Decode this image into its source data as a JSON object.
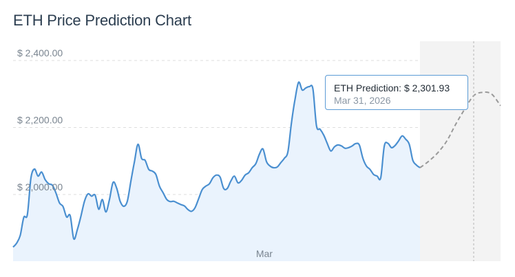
{
  "title": "ETH Price Prediction Chart",
  "colors": {
    "line": "#4a8fd0",
    "area": "#eaf3fd",
    "forecast_line": "#999999",
    "forecast_band": "#f3f3f3",
    "grid": "#dddddd",
    "tooltip_border": "#5b9bd5"
  },
  "tooltip": {
    "label": "ETH Prediction:",
    "value": "$ 2,301.93",
    "date": "Mar 31, 2026"
  },
  "chart_data": {
    "type": "area",
    "title": "ETH Price Prediction Chart",
    "xlabel": "",
    "ylabel": "",
    "ylim": [
      1820,
      2430
    ],
    "y_ticks": [
      {
        "value": 2000,
        "label": "$ 2,000.00"
      },
      {
        "value": 2200,
        "label": "$ 2,200.00"
      },
      {
        "value": 2400,
        "label": "$ 2,400.00"
      }
    ],
    "x_ticks": [
      "Mar"
    ],
    "grid": true,
    "series": [
      {
        "kind": "historical",
        "values": [
          1843,
          1855,
          1878,
          1932,
          1940,
          2049,
          2076,
          2055,
          2067,
          2044,
          2032,
          2028,
          2005,
          1975,
          1964,
          1933,
          1937,
          1868,
          1895,
          1935,
          1980,
          2002,
          1995,
          1998,
          1956,
          1985,
          1948,
          1985,
          2036,
          2020,
          1980,
          1965,
          1980,
          2040,
          2098,
          2150,
          2108,
          2102,
          2075,
          2070,
          2060,
          2025,
          2006,
          1986,
          1979,
          1980,
          1975,
          1970,
          1966,
          1955,
          1950,
          1961,
          1988,
          2015,
          2025,
          2032,
          2050,
          2058,
          2052,
          2018,
          2018,
          2040,
          2055,
          2035,
          2042,
          2058,
          2065,
          2080,
          2092,
          2120,
          2136,
          2098,
          2085,
          2080,
          2082,
          2095,
          2108,
          2128,
          2215,
          2285,
          2335,
          2312,
          2318,
          2322,
          2315,
          2205,
          2195,
          2178,
          2153,
          2130,
          2142,
          2148,
          2145,
          2138,
          2140,
          2145,
          2152,
          2148,
          2108,
          2085,
          2075,
          2060,
          2055,
          2050,
          2145,
          2153,
          2140,
          2146,
          2160,
          2175,
          2165,
          2150,
          2102,
          2088,
          2080
        ]
      },
      {
        "kind": "prediction",
        "values": [
          2080,
          2100,
          2125,
          2160,
          2210,
          2255,
          2295,
          2305,
          2300,
          2265
        ]
      }
    ],
    "x_tick_positions_index": {
      "Mar": 70
    },
    "highlight": {
      "label": "Mar 31, 2026",
      "value": 2301.93
    }
  }
}
